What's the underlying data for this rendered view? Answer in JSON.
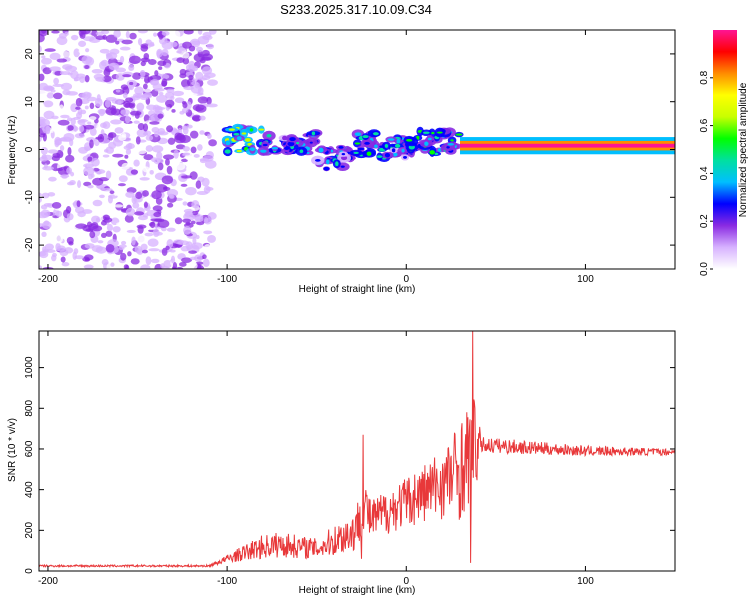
{
  "title": "S233.2025.317.10.09.C34",
  "colors": {
    "snr_line": "#e8383a",
    "axis": "#000000",
    "cmap": [
      "#ffffff",
      "#d7b2ff",
      "#8a2be2",
      "#0000ff",
      "#00bfff",
      "#00e0a0",
      "#00ff00",
      "#c8ff00",
      "#ffff00",
      "#ff8c00",
      "#ff0000",
      "#ff1493"
    ]
  },
  "chart_data": [
    {
      "type": "heatmap",
      "name": "spectrogram",
      "xlabel": "Height of straight line (km)",
      "ylabel": "Frequency (Hz)",
      "xlim": [
        -205,
        150
      ],
      "ylim": [
        -25,
        25
      ],
      "xticks": [
        -200,
        -100,
        0,
        100
      ],
      "xtick_labels": [
        "-200",
        "-100",
        "0",
        "100"
      ],
      "yticks": [
        -20,
        -10,
        0,
        10,
        20
      ],
      "ytick_labels": [
        "-20",
        "-10",
        "0",
        "10",
        "20"
      ],
      "noise_region_x": [
        -205,
        -108
      ],
      "signal_segments": [
        {
          "x": [
            -100,
            -80
          ],
          "freq": 2,
          "amp": 0.6
        },
        {
          "x": [
            -80,
            -50
          ],
          "freq": 1.5,
          "amp": 0.45
        },
        {
          "x": [
            -50,
            -30
          ],
          "freq": -2,
          "amp": 0.4
        },
        {
          "x": [
            -30,
            -15
          ],
          "freq": 1,
          "amp": 0.5
        },
        {
          "x": [
            -15,
            0
          ],
          "freq": 0,
          "amp": 0.45
        },
        {
          "x": [
            0,
            30
          ],
          "freq": 1.5,
          "amp": 0.55
        },
        {
          "x": [
            30,
            150
          ],
          "freq": 0.8,
          "amp": 1.0
        }
      ],
      "colorbar": {
        "label": "Normalized spectral amplitude",
        "ticks": [
          0.0,
          0.2,
          0.4,
          0.6,
          0.8
        ],
        "tick_labels": [
          "0.0",
          "0.2",
          "0.4",
          "0.6",
          "0.8"
        ],
        "range": [
          0,
          1
        ]
      }
    },
    {
      "type": "line",
      "name": "snr",
      "xlabel": "Height of straight line (km)",
      "ylabel": "SNR (10 * v/v)",
      "xlim": [
        -205,
        150
      ],
      "ylim": [
        0,
        1180
      ],
      "xticks": [
        -200,
        -100,
        0,
        100
      ],
      "xtick_labels": [
        "-200",
        "-100",
        "0",
        "100"
      ],
      "yticks": [
        0,
        200,
        400,
        600,
        800,
        1000
      ],
      "ytick_labels": [
        "0",
        "200",
        "400",
        "600",
        "800",
        "1000"
      ],
      "profile": [
        {
          "x": -205,
          "base": 25,
          "noise": 10
        },
        {
          "x": -110,
          "base": 25,
          "noise": 10
        },
        {
          "x": -100,
          "base": 60,
          "noise": 40
        },
        {
          "x": -80,
          "base": 120,
          "noise": 120
        },
        {
          "x": -70,
          "base": 130,
          "noise": 130
        },
        {
          "x": -50,
          "base": 110,
          "noise": 100
        },
        {
          "x": -28,
          "base": 200,
          "noise": 220
        },
        {
          "x": -24,
          "base": 350,
          "noise": 300
        },
        {
          "x": -20,
          "base": 250,
          "noise": 200
        },
        {
          "x": 0,
          "base": 340,
          "noise": 250
        },
        {
          "x": 20,
          "base": 430,
          "noise": 350
        },
        {
          "x": 30,
          "base": 500,
          "noise": 500
        },
        {
          "x": 38,
          "base": 600,
          "noise": 520
        },
        {
          "x": 42,
          "base": 620,
          "noise": 80
        },
        {
          "x": 100,
          "base": 590,
          "noise": 50
        },
        {
          "x": 150,
          "base": 585,
          "noise": 30
        }
      ],
      "peaks": [
        {
          "x": 37,
          "y": 1180
        },
        {
          "x": 36,
          "y": 40
        },
        {
          "x": -24,
          "y": 670
        },
        {
          "x": -25,
          "y": 60
        }
      ]
    }
  ]
}
